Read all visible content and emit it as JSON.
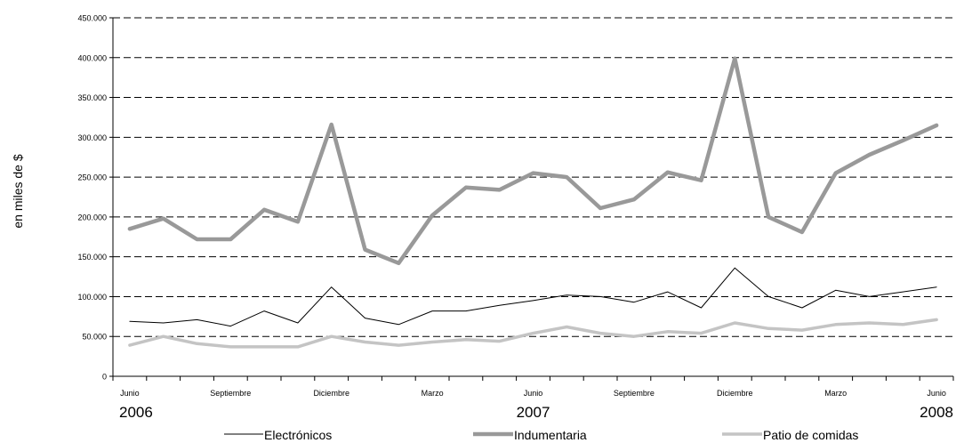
{
  "chart_data": {
    "type": "line",
    "ylabel": "en miles de $",
    "ylim": [
      0,
      450000
    ],
    "yticks": [
      "0",
      "50.000",
      "100.000",
      "150.000",
      "200.000",
      "250.000",
      "300.000",
      "350.000",
      "400.000",
      "450.000"
    ],
    "x": [
      "2006-06",
      "2006-07",
      "2006-08",
      "2006-09",
      "2006-10",
      "2006-11",
      "2006-12",
      "2007-01",
      "2007-02",
      "2007-03",
      "2007-04",
      "2007-05",
      "2007-06",
      "2007-07",
      "2007-08",
      "2007-09",
      "2007-10",
      "2007-11",
      "2007-12",
      "2008-01",
      "2008-02",
      "2008-03",
      "2008-04",
      "2008-05",
      "2008-06"
    ],
    "month_labels": [
      {
        "index": 0,
        "text": "Junio"
      },
      {
        "index": 3,
        "text": "Septiembre"
      },
      {
        "index": 6,
        "text": "Diciembre"
      },
      {
        "index": 9,
        "text": "Marzo"
      },
      {
        "index": 12,
        "text": "Junio"
      },
      {
        "index": 15,
        "text": "Septiembre"
      },
      {
        "index": 18,
        "text": "Diciembre"
      },
      {
        "index": 21,
        "text": "Marzo"
      },
      {
        "index": 24,
        "text": "Junio"
      }
    ],
    "year_labels": [
      {
        "index": 0,
        "text": "2006"
      },
      {
        "index": 12,
        "text": "2007"
      },
      {
        "index": 24,
        "text": "2008"
      }
    ],
    "grid": true,
    "legend_position": "bottom",
    "series": [
      {
        "name": "Electrónicos",
        "color": "#000000",
        "values": [
          69000,
          67000,
          71000,
          63000,
          82000,
          67000,
          112000,
          73000,
          65000,
          82000,
          82000,
          89000,
          95000,
          102000,
          100000,
          93000,
          106000,
          86000,
          136000,
          100000,
          86000,
          108000,
          100000,
          106000,
          112000
        ]
      },
      {
        "name": "Indumentaria",
        "color": "#999999",
        "values": [
          185000,
          198000,
          172000,
          172000,
          209000,
          194000,
          316000,
          159000,
          142000,
          202000,
          237000,
          234000,
          255000,
          250000,
          211000,
          222000,
          256000,
          246000,
          399000,
          200000,
          181000,
          255000,
          278000,
          296000,
          315000
        ]
      },
      {
        "name": "Patio de comidas",
        "color": "#c4c4c4",
        "values": [
          39000,
          50000,
          41000,
          37000,
          37000,
          37000,
          50000,
          43000,
          39000,
          43000,
          46000,
          44000,
          54000,
          62000,
          54000,
          50000,
          56000,
          54000,
          67000,
          60000,
          58000,
          65000,
          67000,
          65000,
          71000
        ]
      }
    ]
  }
}
